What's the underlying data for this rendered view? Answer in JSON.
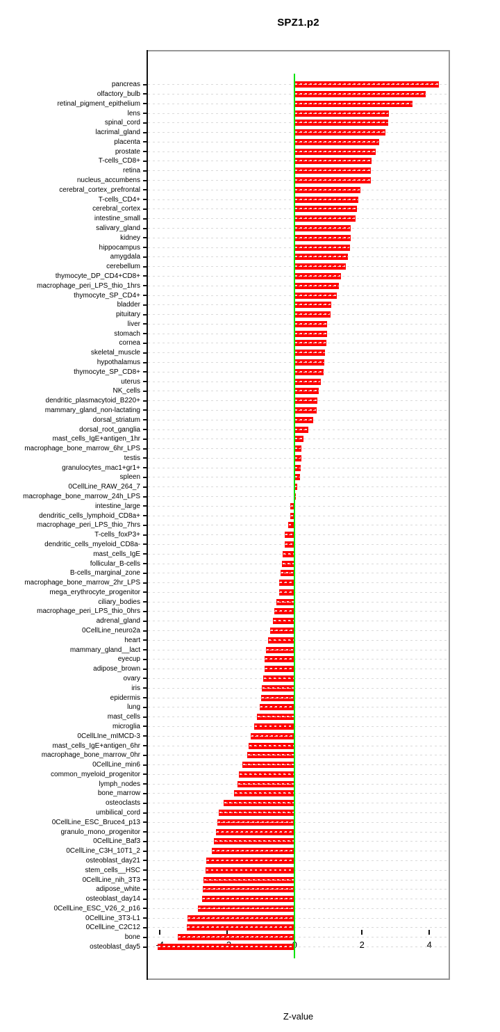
{
  "title": "SPZ1.p2",
  "chart_data": {
    "type": "bar",
    "orientation": "horizontal",
    "title": "SPZ1.p2",
    "xlabel": "Z-value",
    "xlim": [
      -4.6,
      4.6
    ],
    "x_ticks": [
      -4,
      -2,
      0,
      2,
      4
    ],
    "grid": "dashed-horizontal-per-row",
    "bar_color": "#ff0000",
    "zero_line_color": "#00e406",
    "categories": [
      "pancreas",
      "olfactory_bulb",
      "retinal_pigment_epithelium",
      "lens",
      "spinal_cord",
      "lacrimal_gland",
      "placenta",
      "prostate",
      "T-cells_CD8+",
      "retina",
      "nucleus_accumbens",
      "cerebral_cortex_prefrontal",
      "T-cells_CD4+",
      "cerebral_cortex",
      "intestine_small",
      "salivary_gland",
      "kidney",
      "hippocampus",
      "amygdala",
      "cerebellum",
      "thymocyte_DP_CD4+CD8+",
      "macrophage_peri_LPS_thio_1hrs",
      "thymocyte_SP_CD4+",
      "bladder",
      "pituitary",
      "liver",
      "stomach",
      "cornea",
      "skeletal_muscle",
      "hypothalamus",
      "thymocyte_SP_CD8+",
      "uterus",
      "NK_cells",
      "dendritic_plasmacytoid_B220+",
      "mammary_gland_non-lactating",
      "dorsal_striatum",
      "dorsal_root_ganglia",
      "mast_cells_IgE+antigen_1hr",
      "macrophage_bone_marrow_6hr_LPS",
      "testis",
      "granulocytes_mac1+gr1+",
      "spleen",
      "0CellLine_RAW_264_7",
      "macrophage_bone_marrow_24h_LPS",
      "intestine_large",
      "dendritic_cells_lymphoid_CD8a+",
      "macrophage_peri_LPS_thio_7hrs",
      "T-cells_foxP3+",
      "dendritic_cells_myeloid_CD8a-",
      "mast_cells_IgE",
      "follicular_B-cells",
      "B-cells_marginal_zone",
      "macrophage_bone_marrow_2hr_LPS",
      "mega_erythrocyte_progenitor",
      "ciliary_bodies",
      "macrophage_peri_LPS_thio_0hrs",
      "adrenal_gland",
      "0CellLine_neuro2a",
      "heart",
      "mammary_gland__lact",
      "eyecup",
      "adipose_brown",
      "ovary",
      "iris",
      "epidermis",
      "lung",
      "mast_cells",
      "microglia",
      "0CellLIne_mIMCD-3",
      "mast_cells_IgE+antigen_6hr",
      "macrophage_bone_marrow_0hr",
      "0CellLine_min6",
      "common_myeloid_progenitor",
      "lymph_nodes",
      "bone_marrow",
      "osteoclasts",
      "umbilical_cord",
      "0CellLine_ESC_Bruce4_p13",
      "granulo_mono_progenitor",
      "0CellLine_Baf3",
      "0CellLine_C3H_10T1_2",
      "osteoblast_day21",
      "stem_cells__HSC",
      "0CellLine_nih_3T3",
      "adipose_white",
      "osteoblast_day14",
      "0CellLine_ESC_V26_2_p16",
      "0CellLine_3T3-L1",
      "0CellLine_C2C12",
      "bone",
      "osteoblast_day5"
    ],
    "values": [
      4.29,
      3.9,
      3.5,
      2.8,
      2.77,
      2.69,
      2.51,
      2.41,
      2.29,
      2.27,
      2.26,
      1.95,
      1.89,
      1.84,
      1.8,
      1.67,
      1.66,
      1.65,
      1.59,
      1.52,
      1.37,
      1.32,
      1.26,
      1.08,
      1.07,
      0.97,
      0.96,
      0.94,
      0.9,
      0.88,
      0.85,
      0.77,
      0.71,
      0.68,
      0.66,
      0.55,
      0.4,
      0.27,
      0.21,
      0.19,
      0.17,
      0.15,
      0.08,
      0.04,
      -0.12,
      -0.14,
      -0.19,
      -0.29,
      -0.3,
      -0.35,
      -0.37,
      -0.41,
      -0.45,
      -0.47,
      -0.54,
      -0.6,
      -0.65,
      -0.73,
      -0.8,
      -0.85,
      -0.89,
      -0.9,
      -0.93,
      -0.98,
      -1.0,
      -1.04,
      -1.11,
      -1.2,
      -1.31,
      -1.36,
      -1.41,
      -1.55,
      -1.66,
      -1.69,
      -1.81,
      -2.1,
      -2.25,
      -2.29,
      -2.33,
      -2.4,
      -2.45,
      -2.63,
      -2.65,
      -2.71,
      -2.73,
      -2.75,
      -2.87,
      -3.18,
      -3.2,
      -3.48,
      -4.07
    ]
  }
}
